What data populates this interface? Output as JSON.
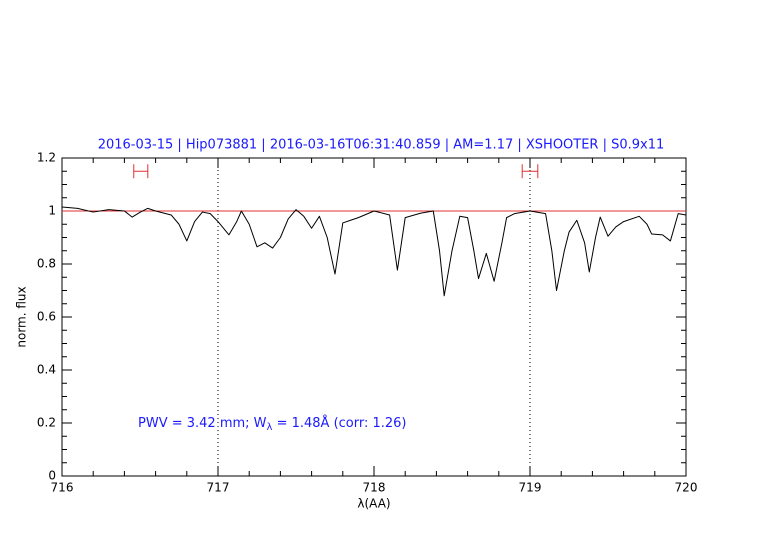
{
  "chart_data": {
    "type": "line",
    "title": "2016-03-15 | Hip073881 | 2016-03-16T06:31:40.859 | AM=1.17 | XSHOOTER | S0.9x11",
    "xlabel": "λ(AA)",
    "ylabel": "norm. flux",
    "annotation": [
      "PWV = 3.42 mm; W",
      "λ",
      " = 1.48Å (corr: 1.26)"
    ],
    "xlim": [
      716,
      720
    ],
    "ylim": [
      0,
      1.2
    ],
    "xticks": [
      716,
      717,
      718,
      719,
      720
    ],
    "yticks": [
      0,
      0.2,
      0.4,
      0.6,
      0.8,
      1,
      1.2
    ],
    "xminorticks": [
      716.2,
      716.4,
      716.6,
      716.8,
      717.2,
      717.4,
      717.6,
      717.8,
      718.2,
      718.4,
      718.6,
      718.8,
      719.2,
      719.4,
      719.6,
      719.8
    ],
    "yminorticks": [
      0.05,
      0.1,
      0.15,
      0.25,
      0.3,
      0.35,
      0.45,
      0.5,
      0.55,
      0.65,
      0.7,
      0.75,
      0.85,
      0.9,
      0.95,
      1.05,
      1.1,
      1.15
    ],
    "vlines": [
      717,
      719
    ],
    "hline": 1,
    "hline_color": "#e03030",
    "markers": [
      {
        "x": [
          716.46,
          716.55
        ],
        "y": 1.15
      },
      {
        "x": [
          718.95,
          719.05
        ],
        "y": 1.15
      }
    ],
    "marker_color": "#e03030",
    "series": [
      {
        "color": "#000000",
        "x": [
          716.0,
          716.1,
          716.2,
          716.3,
          716.4,
          716.45,
          716.5,
          716.55,
          716.6,
          716.7,
          716.75,
          716.8,
          716.85,
          716.9,
          716.95,
          717.0,
          717.07,
          717.12,
          717.15,
          717.2,
          717.25,
          717.3,
          717.35,
          717.4,
          717.45,
          717.5,
          717.55,
          717.6,
          717.65,
          717.7,
          717.75,
          717.8,
          717.85,
          717.9,
          718.0,
          718.1,
          718.15,
          718.2,
          718.3,
          718.38,
          718.42,
          718.45,
          718.5,
          718.55,
          718.6,
          718.64,
          718.67,
          718.72,
          718.77,
          718.82,
          718.85,
          718.9,
          719.0,
          719.1,
          719.14,
          719.17,
          719.22,
          719.25,
          719.3,
          719.35,
          719.38,
          719.42,
          719.45,
          719.5,
          719.55,
          719.6,
          719.7,
          719.75,
          719.78,
          719.85,
          719.9,
          719.95,
          720.0
        ],
        "values": [
          1.015,
          1.01,
          0.996,
          1.005,
          1.0,
          0.977,
          0.995,
          1.01,
          1.0,
          0.985,
          0.95,
          0.887,
          0.96,
          0.996,
          0.99,
          0.96,
          0.91,
          0.96,
          1.0,
          0.95,
          0.865,
          0.88,
          0.86,
          0.9,
          0.97,
          1.005,
          0.98,
          0.935,
          0.98,
          0.9,
          0.762,
          0.955,
          0.965,
          0.975,
          1.0,
          0.985,
          0.777,
          0.975,
          0.992,
          1.0,
          0.85,
          0.68,
          0.85,
          0.98,
          0.975,
          0.85,
          0.745,
          0.84,
          0.735,
          0.88,
          0.975,
          0.99,
          1.0,
          0.99,
          0.85,
          0.7,
          0.85,
          0.92,
          0.965,
          0.88,
          0.77,
          0.9,
          0.977,
          0.905,
          0.94,
          0.96,
          0.98,
          0.95,
          0.913,
          0.91,
          0.887,
          0.99,
          0.985
        ]
      }
    ]
  }
}
